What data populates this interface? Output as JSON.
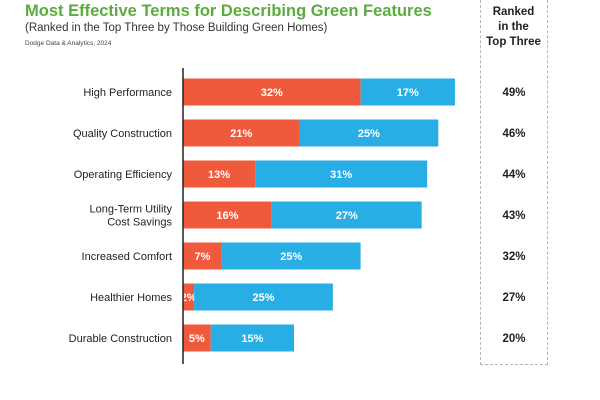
{
  "title": "Most Effective Terms for Describing Green Features",
  "subtitle": "(Ranked in the Top Three by Those Building Green Homes)",
  "source": "Dodge Data & Analytics, 2024",
  "side_header": [
    "Ranked",
    "in the",
    "Top Three"
  ],
  "colors": {
    "first_segment": "#ef5a3c",
    "second_segment": "#28aee4",
    "axis": "#222222"
  },
  "chart_data": {
    "type": "bar",
    "orientation": "horizontal",
    "stacked": true,
    "categories": [
      [
        "High Performance"
      ],
      [
        "Quality Construction"
      ],
      [
        "Operating Efficiency"
      ],
      [
        "Long-Term Utility",
        "Cost Savings"
      ],
      [
        "Increased Comfort"
      ],
      [
        "Healthier Homes"
      ],
      [
        "Durable Construction"
      ]
    ],
    "series": [
      {
        "values": [
          32,
          21,
          13,
          16,
          7,
          2,
          5
        ],
        "labels": [
          "32%",
          "21%",
          "13%",
          "16%",
          "7%",
          "2%",
          "5%"
        ]
      },
      {
        "values": [
          17,
          25,
          31,
          27,
          25,
          25,
          15
        ],
        "labels": [
          "17%",
          "25%",
          "31%",
          "27%",
          "25%",
          "25%",
          "15%"
        ]
      }
    ],
    "totals": [
      "49%",
      "46%",
      "44%",
      "43%",
      "32%",
      "27%",
      "20%"
    ],
    "unit": "%"
  }
}
